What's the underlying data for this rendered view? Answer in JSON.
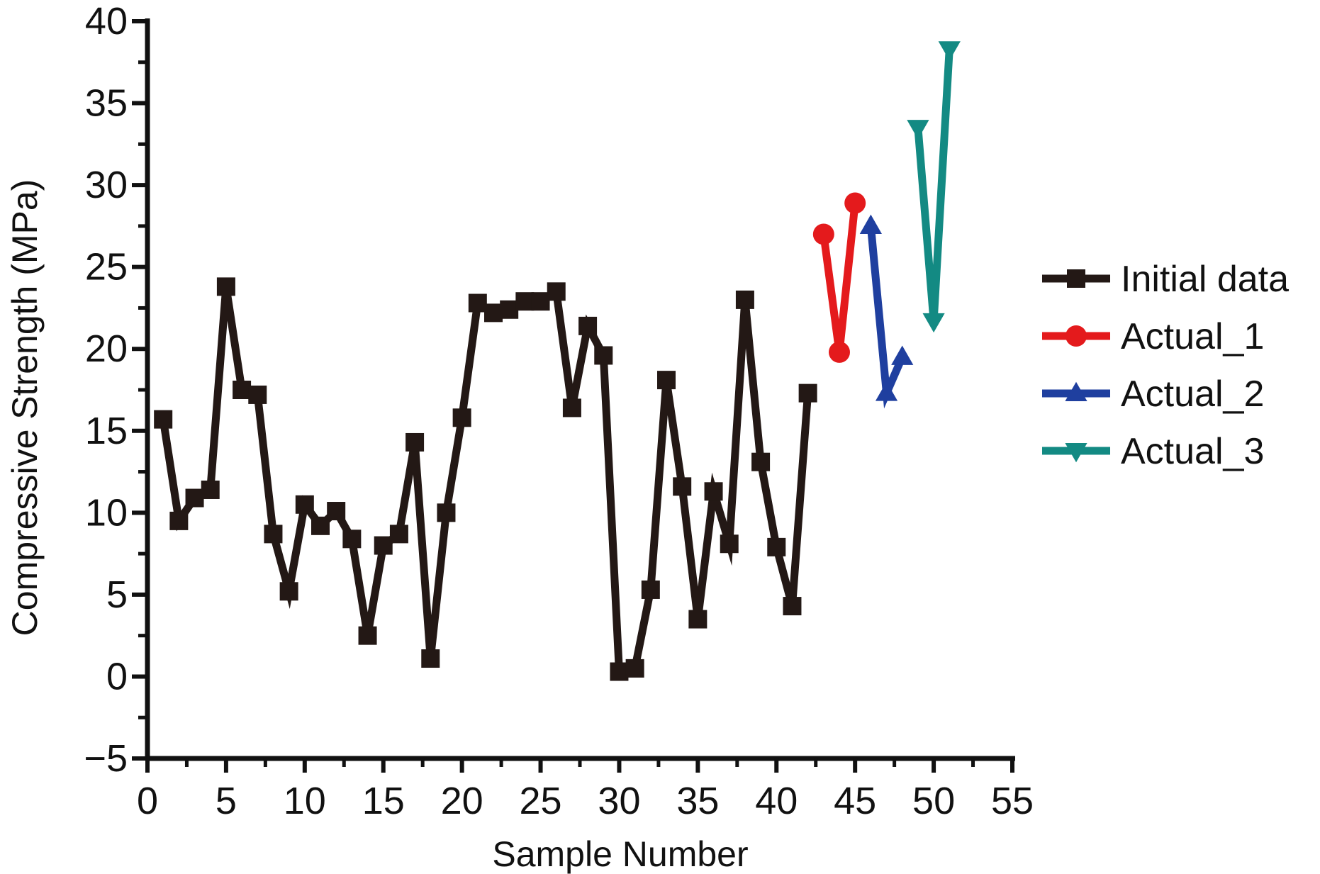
{
  "chart_data": {
    "type": "line",
    "xlabel": "Sample Number",
    "ylabel": "Compressive Strength (MPa)",
    "xlim": [
      0,
      55
    ],
    "ylim": [
      -5,
      40
    ],
    "xticks": [
      0,
      5,
      10,
      15,
      20,
      25,
      30,
      35,
      40,
      45,
      50,
      55
    ],
    "yticks": [
      -5,
      0,
      5,
      10,
      15,
      20,
      25,
      30,
      35,
      40
    ],
    "xtick_labels": [
      "0",
      "5",
      "10",
      "15",
      "20",
      "25",
      "30",
      "35",
      "40",
      "45",
      "50",
      "55"
    ],
    "ytick_labels": [
      "−5",
      "0",
      "5",
      "10",
      "15",
      "20",
      "25",
      "30",
      "35",
      "40"
    ],
    "grid": false,
    "legend_position": "right",
    "series": [
      {
        "name": "Initial data",
        "color": "#231815",
        "marker": "square",
        "x": [
          1,
          2,
          3,
          4,
          5,
          6,
          7,
          8,
          9,
          10,
          11,
          12,
          13,
          14,
          15,
          16,
          17,
          18,
          19,
          20,
          21,
          22,
          23,
          24,
          25,
          26,
          27,
          28,
          29,
          30,
          31,
          32,
          33,
          34,
          35,
          36,
          37,
          38,
          39,
          40,
          41,
          42
        ],
        "y": [
          15.7,
          9.5,
          10.9,
          11.4,
          23.8,
          17.5,
          17.2,
          8.7,
          5.2,
          10.5,
          9.2,
          10.1,
          8.4,
          2.5,
          8.0,
          8.7,
          14.3,
          1.1,
          10.0,
          15.8,
          22.8,
          22.2,
          22.4,
          22.9,
          22.9,
          23.5,
          16.4,
          21.4,
          19.6,
          0.3,
          0.5,
          5.3,
          18.1,
          11.6,
          3.5,
          11.3,
          8.1,
          23.0,
          13.1,
          7.9,
          4.3,
          17.3
        ]
      },
      {
        "name": "Actual_1",
        "color": "#e41a1c",
        "marker": "circle",
        "x": [
          43,
          44,
          45
        ],
        "y": [
          27.0,
          19.8,
          28.9
        ]
      },
      {
        "name": "Actual_2",
        "color": "#1f3f9f",
        "marker": "triangle-up",
        "x": [
          46,
          47,
          48
        ],
        "y": [
          27.5,
          17.3,
          19.5
        ]
      },
      {
        "name": "Actual_3",
        "color": "#138a83",
        "marker": "triangle-down",
        "x": [
          49,
          50,
          51
        ],
        "y": [
          33.5,
          21.7,
          38.3
        ]
      }
    ]
  }
}
